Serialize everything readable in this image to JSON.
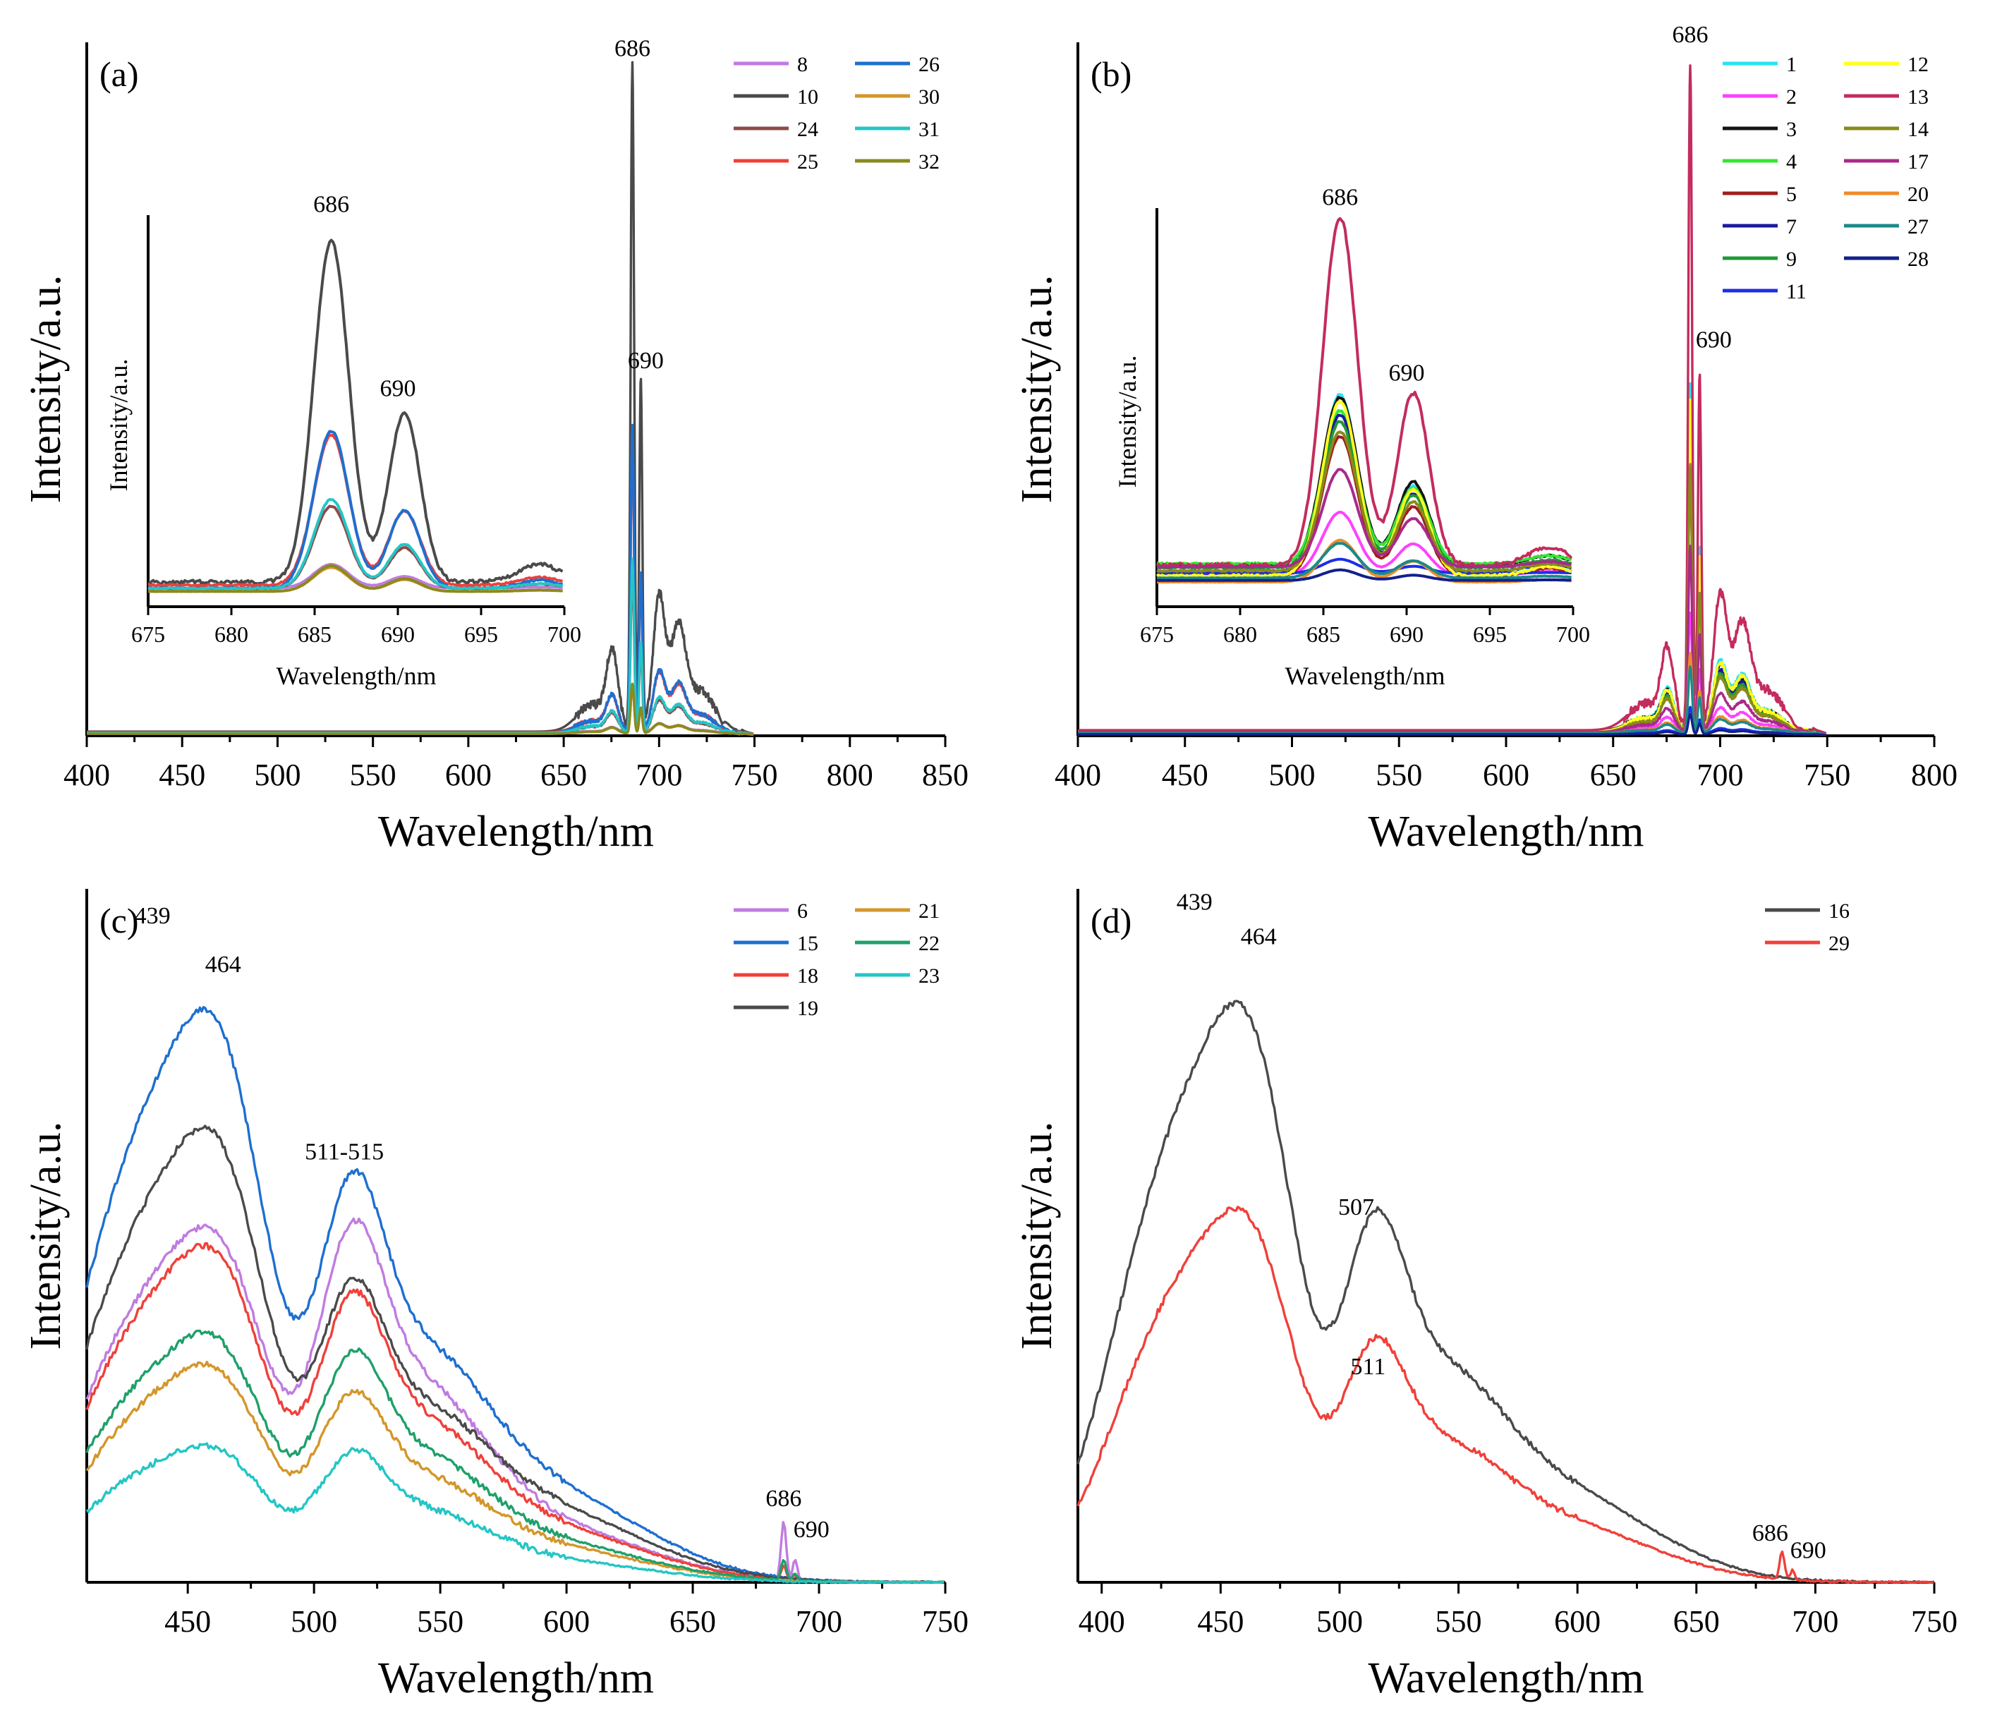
{
  "chart_data": [
    {
      "id": "a",
      "type": "line",
      "panel_label": "(a)",
      "xlabel": "Wavelength/nm",
      "ylabel": "Intensity/a.u.",
      "xlim": [
        400,
        850
      ],
      "xticks": [
        400,
        450,
        500,
        550,
        600,
        650,
        700,
        750,
        800,
        850
      ],
      "ylim": [
        0,
        1
      ],
      "legend_position": "top-right",
      "legend_columns": 2,
      "annotations": [
        {
          "text": "686",
          "x": 686,
          "y": 0.98
        },
        {
          "text": "690",
          "x": 693,
          "y": 0.53
        }
      ],
      "series": [
        {
          "name": "8",
          "color": "#c07be0",
          "shape": "red",
          "scale": 0.07,
          "base": 0.004
        },
        {
          "name": "10",
          "color": "#4a4a4a",
          "shape": "red",
          "scale": 1.0,
          "base": 0.006
        },
        {
          "name": "24",
          "color": "#8e4a4a",
          "shape": "red",
          "scale": 0.24,
          "base": 0.004
        },
        {
          "name": "25",
          "color": "#f0403a",
          "shape": "red",
          "scale": 0.44,
          "base": 0.005
        },
        {
          "name": "26",
          "color": "#1e6fd0",
          "shape": "red",
          "scale": 0.46,
          "base": 0.004
        },
        {
          "name": "30",
          "color": "#d4962a",
          "shape": "red",
          "scale": 0.07,
          "base": 0.003
        },
        {
          "name": "31",
          "color": "#25c5c5",
          "shape": "red",
          "scale": 0.26,
          "base": 0.004
        },
        {
          "name": "32",
          "color": "#8a8a1e",
          "shape": "red",
          "scale": 0.075,
          "base": 0.003
        }
      ],
      "inset": {
        "xlabel": "Wavelength/nm",
        "ylabel": "Intensity/a.u.",
        "xlim": [
          675,
          700
        ],
        "xticks": [
          675,
          680,
          685,
          690,
          695,
          700
        ],
        "annotations": [
          {
            "text": "686",
            "x": 686,
            "y": 0.99
          },
          {
            "text": "690",
            "x": 690,
            "y": 0.52
          }
        ]
      }
    },
    {
      "id": "b",
      "type": "line",
      "panel_label": "(b)",
      "xlabel": "Wavelength/nm",
      "ylabel": "Intensity/a.u.",
      "xlim": [
        400,
        800
      ],
      "xticks": [
        400,
        450,
        500,
        550,
        600,
        650,
        700,
        750,
        800
      ],
      "ylim": [
        0,
        1
      ],
      "legend_position": "top-right",
      "legend_columns": 2,
      "annotations": [
        {
          "text": "686",
          "x": 686,
          "y": 1.0
        },
        {
          "text": "690",
          "x": 697,
          "y": 0.56
        }
      ],
      "series": [
        {
          "name": "1",
          "color": "#27e4f2",
          "shape": "red",
          "scale": 0.52,
          "base": 0.006
        },
        {
          "name": "2",
          "color": "#ff40ff",
          "shape": "red",
          "scale": 0.18,
          "base": 0.005
        },
        {
          "name": "3",
          "color": "#141414",
          "shape": "red",
          "scale": 0.48,
          "base": 0.007
        },
        {
          "name": "4",
          "color": "#33e633",
          "shape": "red",
          "scale": 0.44,
          "base": 0.006
        },
        {
          "name": "5",
          "color": "#a01e1e",
          "shape": "red",
          "scale": 0.4,
          "base": 0.006
        },
        {
          "name": "7",
          "color": "#1a1aa0",
          "shape": "red",
          "scale": 0.45,
          "base": 0.006
        },
        {
          "name": "9",
          "color": "#1f9a35",
          "shape": "red",
          "scale": 0.42,
          "base": 0.006
        },
        {
          "name": "11",
          "color": "#1c2ee8",
          "shape": "red",
          "scale": 0.04,
          "base": 0.003
        },
        {
          "name": "12",
          "color": "#ffff20",
          "shape": "red",
          "scale": 0.5,
          "base": 0.006
        },
        {
          "name": "13",
          "color": "#c32c5c",
          "shape": "red",
          "scale": 1.0,
          "base": 0.008
        },
        {
          "name": "14",
          "color": "#8a8a1a",
          "shape": "red",
          "scale": 0.4,
          "base": 0.005
        },
        {
          "name": "17",
          "color": "#a82a8a",
          "shape": "red",
          "scale": 0.28,
          "base": 0.005
        },
        {
          "name": "20",
          "color": "#f08a2a",
          "shape": "red",
          "scale": 0.12,
          "base": 0.004
        },
        {
          "name": "27",
          "color": "#1a8a8a",
          "shape": "red",
          "scale": 0.1,
          "base": 0.004
        },
        {
          "name": "28",
          "color": "#12208a",
          "shape": "red",
          "scale": 0.03,
          "base": 0.002
        }
      ],
      "inset": {
        "xlabel": "Wavelength/nm",
        "ylabel": "Intensity/a.u.",
        "xlim": [
          675,
          700
        ],
        "xticks": [
          675,
          680,
          685,
          690,
          695,
          700
        ],
        "annotations": [
          {
            "text": "686",
            "x": 686,
            "y": 0.99
          },
          {
            "text": "690",
            "x": 690,
            "y": 0.55
          }
        ]
      }
    },
    {
      "id": "c",
      "type": "line",
      "panel_label": "(c)",
      "xlabel": "Wavelength/nm",
      "ylabel": "Intensity/a.u.",
      "xlim": [
        410,
        750
      ],
      "xticks": [
        450,
        500,
        550,
        600,
        650,
        700,
        750
      ],
      "ylim": [
        0,
        1
      ],
      "legend_position": "top-right",
      "legend_columns": 2,
      "annotations": [
        {
          "text": "439",
          "x": 436,
          "y": 0.95
        },
        {
          "text": "464",
          "x": 464,
          "y": 0.88
        },
        {
          "text": "511-515",
          "x": 512,
          "y": 0.61
        },
        {
          "text": "686",
          "x": 686,
          "y": 0.11
        },
        {
          "text": "690",
          "x": 697,
          "y": 0.065
        }
      ],
      "series": [
        {
          "name": "6",
          "color": "#c07be0",
          "shape": "blue",
          "peak": 0.57,
          "mid": 0.44,
          "chl": 0.085
        },
        {
          "name": "15",
          "color": "#1e6fd0",
          "shape": "blue",
          "peak": 0.92,
          "mid": 0.49,
          "chl": 0.0
        },
        {
          "name": "18",
          "color": "#f0403a",
          "shape": "blue",
          "peak": 0.54,
          "mid": 0.35,
          "chl": 0.02
        },
        {
          "name": "19",
          "color": "#4a4a4a",
          "shape": "blue",
          "peak": 0.73,
          "mid": 0.36,
          "chl": 0.0
        },
        {
          "name": "21",
          "color": "#d4962a",
          "shape": "blue",
          "peak": 0.35,
          "mid": 0.23,
          "chl": 0.0
        },
        {
          "name": "22",
          "color": "#1fa06a",
          "shape": "blue",
          "peak": 0.4,
          "mid": 0.28,
          "chl": 0.03
        },
        {
          "name": "23",
          "color": "#25c5c5",
          "shape": "blue",
          "peak": 0.22,
          "mid": 0.16,
          "chl": 0.0
        }
      ]
    },
    {
      "id": "d",
      "type": "line",
      "panel_label": "(d)",
      "xlabel": "Wavelength/nm",
      "ylabel": "Intensity/a.u.",
      "xlim": [
        390,
        750
      ],
      "xticks": [
        400,
        450,
        500,
        550,
        600,
        650,
        700,
        750
      ],
      "ylim": [
        0,
        1
      ],
      "legend_position": "top-right",
      "legend_columns": 1,
      "annotations": [
        {
          "text": "439",
          "x": 439,
          "y": 0.97
        },
        {
          "text": "464",
          "x": 466,
          "y": 0.92
        },
        {
          "text": "507",
          "x": 507,
          "y": 0.53
        },
        {
          "text": "511",
          "x": 512,
          "y": 0.3
        },
        {
          "text": "686",
          "x": 681,
          "y": 0.06
        },
        {
          "text": "690",
          "x": 697,
          "y": 0.035
        }
      ],
      "series": [
        {
          "name": "16",
          "color": "#4a4a4a",
          "shape": "blue",
          "peak": 0.93,
          "mid": 0.44,
          "chl": 0.0
        },
        {
          "name": "29",
          "color": "#f0403a",
          "shape": "blue",
          "peak": 0.6,
          "mid": 0.29,
          "chl": 0.04
        }
      ]
    }
  ]
}
